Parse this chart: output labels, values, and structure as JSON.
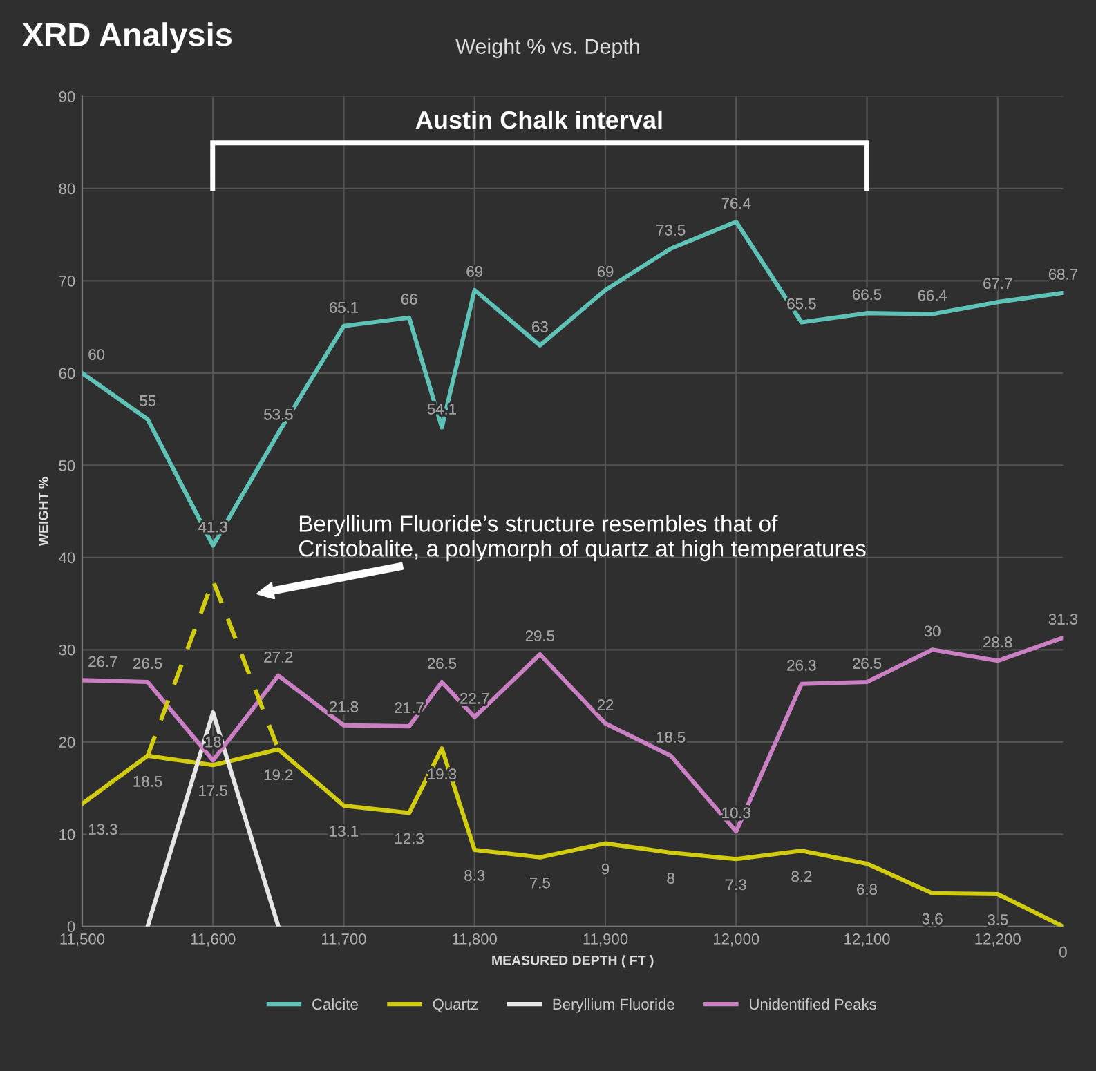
{
  "chart_data": {
    "type": "line",
    "title": "XRD Analysis",
    "subtitle": "Weight % vs. Depth",
    "xlabel": "MEASURED DEPTH ( FT )",
    "ylabel": "WEIGHT %",
    "xlim": [
      11500,
      12250
    ],
    "xticks": [
      {
        "value": 11500,
        "label": "11,500"
      },
      {
        "value": 11600,
        "label": "11,600"
      },
      {
        "value": 11700,
        "label": "11,700"
      },
      {
        "value": 11800,
        "label": "11,800"
      },
      {
        "value": 11900,
        "label": "11,900"
      },
      {
        "value": 12000,
        "label": "12,000"
      },
      {
        "value": 12100,
        "label": "12,100"
      },
      {
        "value": 12200,
        "label": "12,200"
      }
    ],
    "ylim": [
      0,
      90
    ],
    "yticks": [
      0,
      10,
      20,
      30,
      40,
      50,
      60,
      70,
      80,
      90
    ],
    "grid": true,
    "legend": "bottom",
    "marker": "none",
    "line_style": "solid",
    "series": [
      {
        "name": "Calcite",
        "color": "#5ec2b6",
        "x": [
          11500,
          11550,
          11600,
          11650,
          11700,
          11750,
          11775,
          11800,
          11850,
          11900,
          11950,
          12000,
          12050,
          12100,
          12150,
          12200,
          12250
        ],
        "values": [
          60,
          55,
          41.3,
          53.5,
          65.1,
          66,
          54.1,
          69,
          63,
          69,
          73.5,
          76.4,
          65.5,
          66.5,
          66.4,
          67.7,
          68.7
        ],
        "value_labels": [
          "60",
          "55",
          "41.3",
          "53.5",
          "65.1",
          "66",
          "54.1",
          "69",
          "63",
          "69",
          "73.5",
          "76.4",
          "65.5",
          "66.5",
          "66.4",
          "67.7",
          "68.7"
        ]
      },
      {
        "name": "Quartz",
        "color": "#d2cc10",
        "x": [
          11500,
          11550,
          11600,
          11650,
          11700,
          11750,
          11775,
          11800,
          11850,
          11900,
          11950,
          12000,
          12050,
          12100,
          12150,
          12200,
          12250
        ],
        "values": [
          13.3,
          18.5,
          17.5,
          19.2,
          13.1,
          12.3,
          19.3,
          8.3,
          7.5,
          9,
          8,
          7.3,
          8.2,
          6.8,
          3.6,
          3.5,
          0
        ],
        "value_labels": [
          "13.3",
          "18.5",
          "17.5",
          "19.2",
          "13.1",
          "12.3",
          "19.3",
          "8.3",
          "7.5",
          "9",
          "8",
          "7.3",
          "8.2",
          "6.8",
          "3.6",
          "3.5",
          "0"
        ]
      },
      {
        "name": "Beryllium Fluoride",
        "color": "#e6e6e6",
        "x": [
          11550,
          11600,
          11650
        ],
        "values": [
          0,
          23.2,
          0
        ]
      },
      {
        "name": "Unidentified Peaks",
        "color": "#c97fc2",
        "x": [
          11500,
          11550,
          11600,
          11650,
          11700,
          11750,
          11775,
          11800,
          11850,
          11900,
          11950,
          12000,
          12050,
          12100,
          12150,
          12200,
          12250
        ],
        "values": [
          26.7,
          26.5,
          18,
          27.2,
          21.8,
          21.7,
          26.5,
          22.7,
          29.5,
          22,
          18.5,
          10.3,
          26.3,
          26.5,
          30,
          28.8,
          31.3
        ],
        "value_labels": [
          "26.7",
          "26.5",
          "18",
          "27.2",
          "21.8",
          "21.7",
          "26.5",
          "22.7",
          "29.5",
          "22",
          "18.5",
          "10.3",
          "26.3",
          "26.5",
          "30",
          "28.8",
          "31.3"
        ]
      },
      {
        "color": "#d2cc10",
        "line_style": "dashed",
        "x": [
          11550,
          11600,
          11650
        ],
        "values": [
          18.5,
          37.5,
          19.2
        ]
      }
    ],
    "annotations": [
      "Austin Chalk interval",
      "Beryllium Fluoride’s structure resembles that of\nCristobalite, a polymorph of quartz at high temperatures"
    ]
  }
}
